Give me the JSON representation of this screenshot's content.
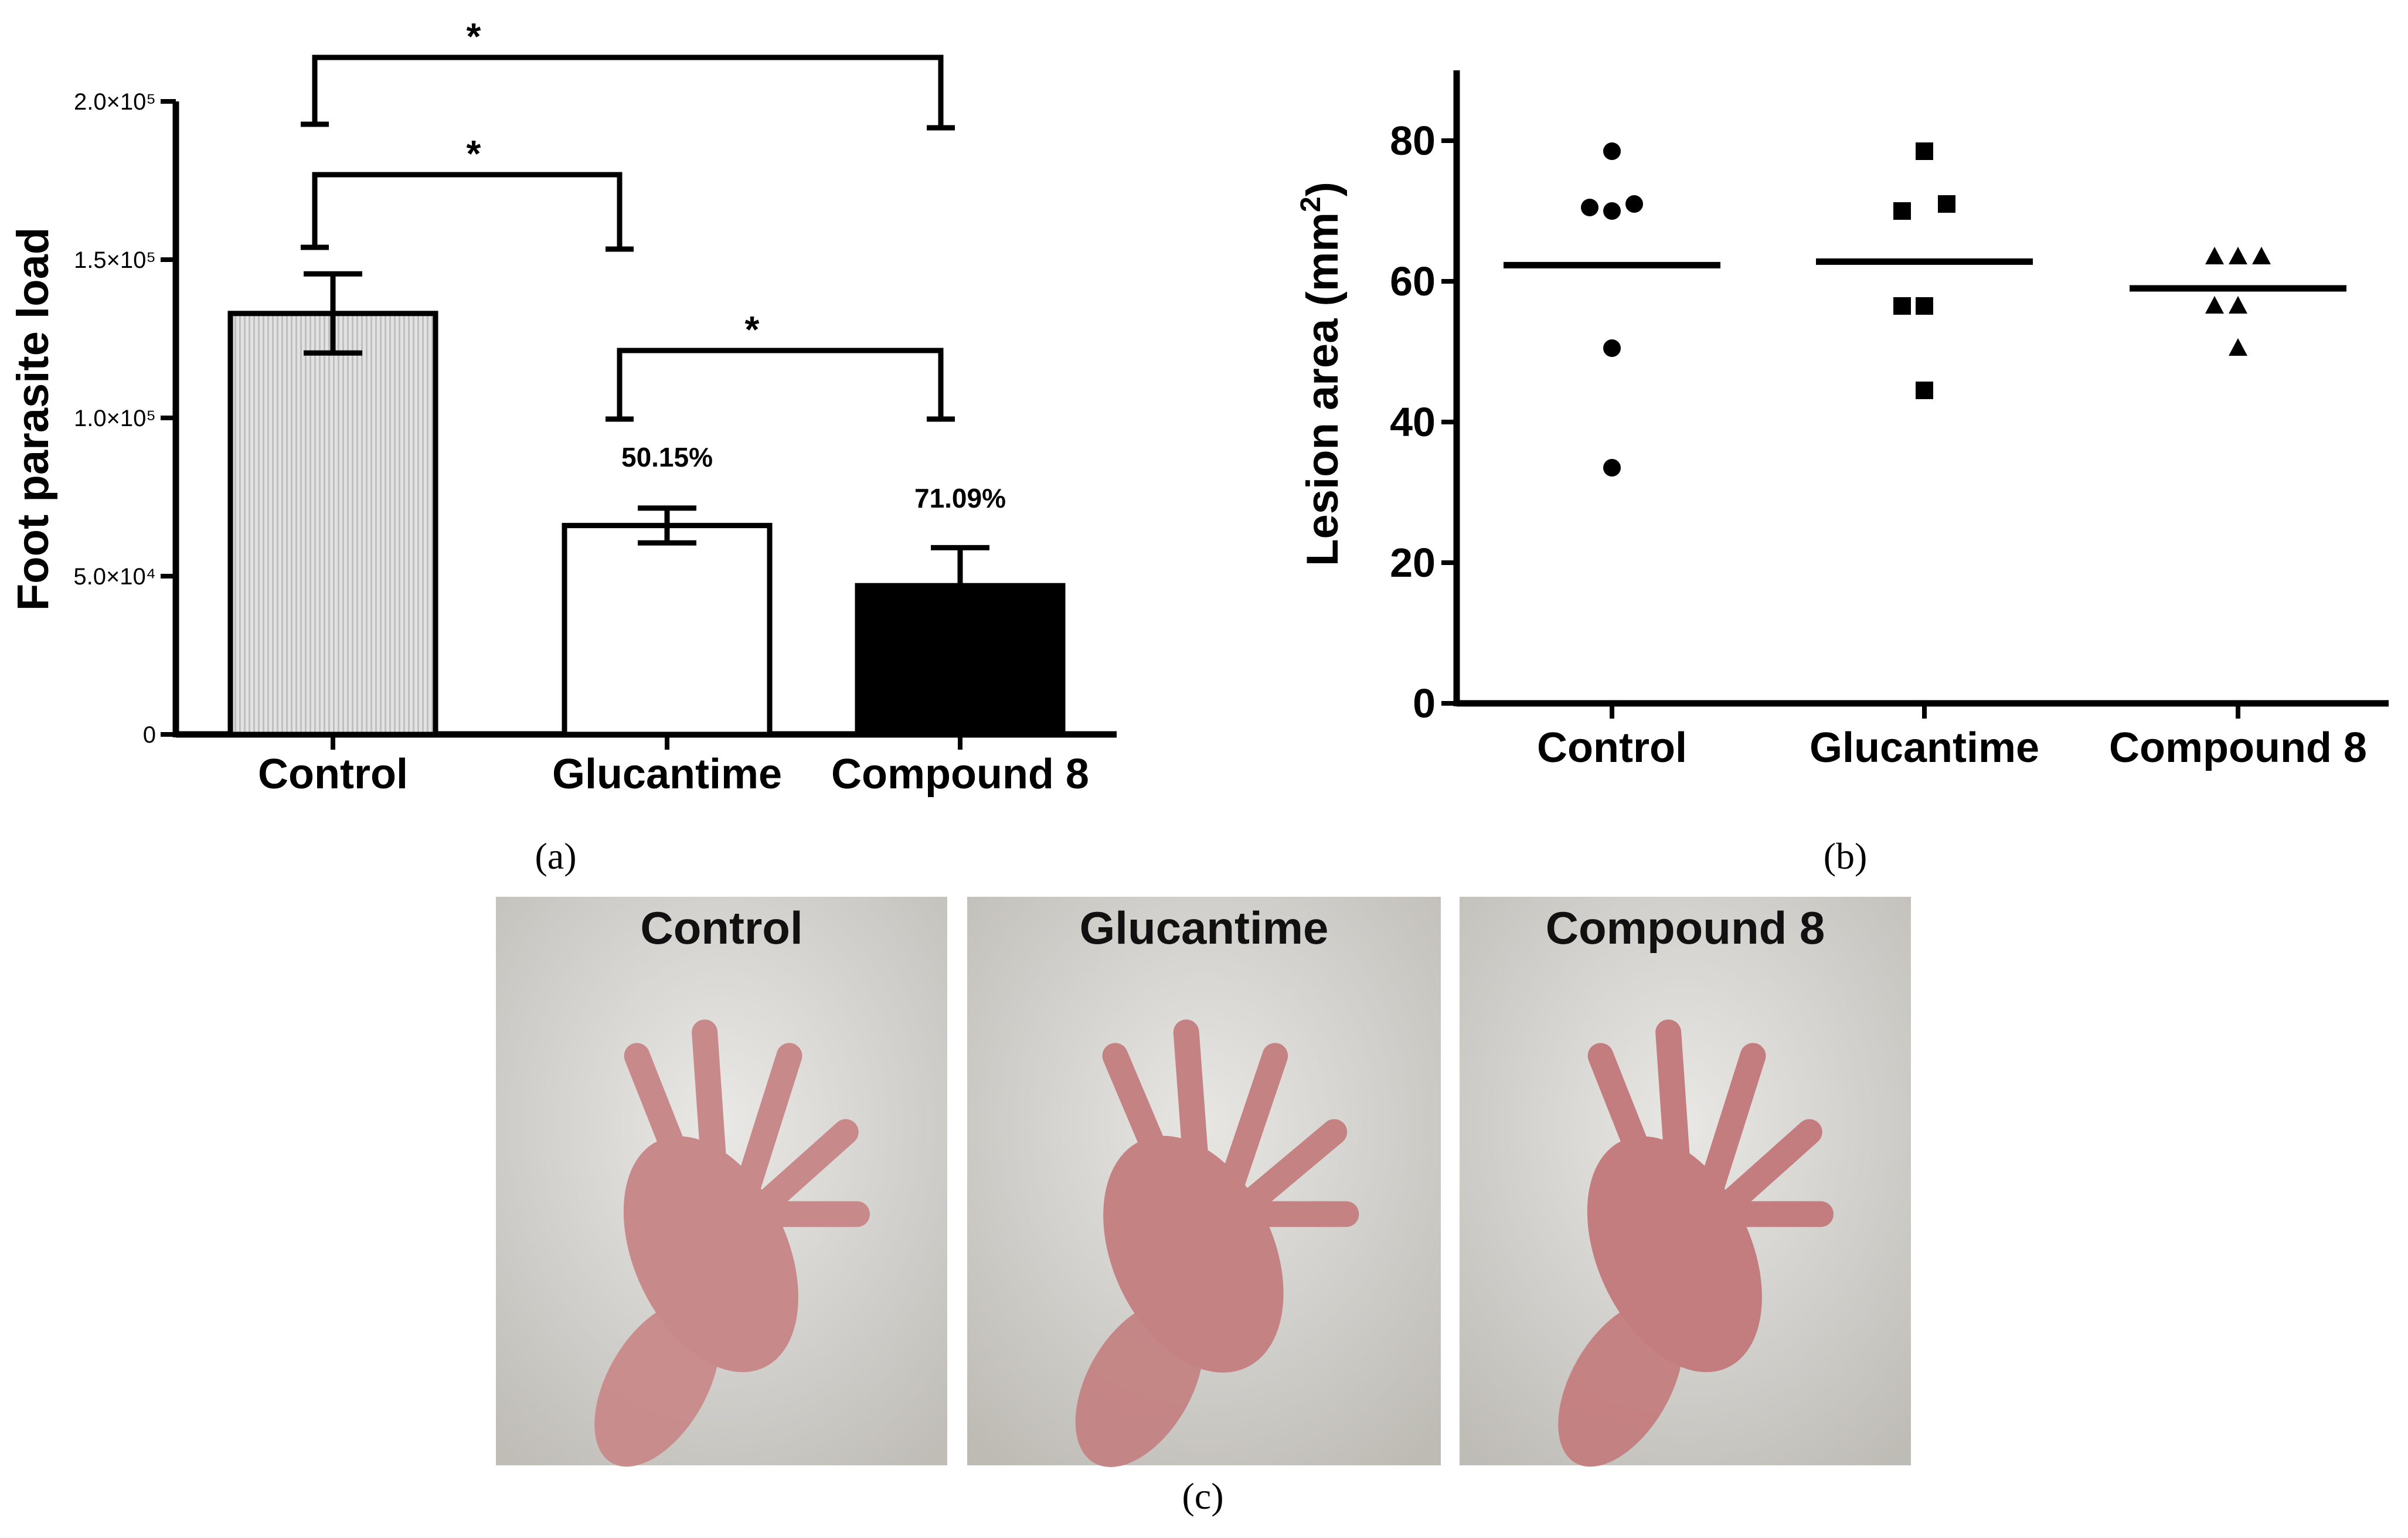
{
  "panels": {
    "a": "(a)",
    "b": "(b)",
    "c": "(c)"
  },
  "chart_data": [
    {
      "type": "bar",
      "ylabel": "Foot parasite load",
      "categories": [
        "Control",
        "Glucantime",
        "Compound 8"
      ],
      "values": [
        133000,
        66000,
        47000
      ],
      "errors": [
        12500,
        5500,
        12000
      ],
      "ylim": [
        0,
        200000
      ],
      "yticks": [
        0,
        50000,
        100000,
        150000,
        200000
      ],
      "ytick_labels": [
        "0",
        "5.0×10⁴",
        "1.0×10⁵",
        "1.5×10⁵",
        "2.0×10⁵"
      ],
      "bar_fills": [
        "#d2d2d2",
        "#ffffff",
        "#000000"
      ],
      "annotations": [
        {
          "category": "Glucantime",
          "text": "50.15%"
        },
        {
          "category": "Compound 8",
          "text": "71.09%"
        }
      ],
      "significance": [
        {
          "from": "Control",
          "to": "Compound 8",
          "text": "*"
        },
        {
          "from": "Control",
          "to": "Glucantime",
          "text": "*"
        },
        {
          "from": "Glucantime",
          "to": "Compound 8",
          "text": "*"
        }
      ]
    },
    {
      "type": "scatter",
      "ylabel": "Lesion area (mm²)",
      "categories": [
        "Control",
        "Glucantime",
        "Compound 8"
      ],
      "ylim": [
        0,
        90
      ],
      "yticks": [
        0,
        20,
        40,
        60,
        80
      ],
      "series": [
        {
          "category": "Control",
          "marker": "circle",
          "values": [
            78.5,
            70.5,
            70.0,
            71.0,
            50.5,
            33.5
          ],
          "mean": 62.3
        },
        {
          "category": "Glucantime",
          "marker": "square",
          "values": [
            78.5,
            70.0,
            71.0,
            56.5,
            56.5,
            44.5
          ],
          "mean": 62.8
        },
        {
          "category": "Compound 8",
          "marker": "triangle",
          "values": [
            63.5,
            63.5,
            63.5,
            56.5,
            56.5,
            50.5
          ],
          "mean": 59.0
        }
      ]
    }
  ],
  "photos": [
    {
      "title": "Control",
      "skin": "#c8898a",
      "background": "#d9d7d3"
    },
    {
      "title": "Glucantime",
      "skin": "#c48283",
      "background": "#cfccc6"
    },
    {
      "title": "Compound 8",
      "skin": "#c47d7e",
      "background": "#d4d2cd"
    }
  ]
}
